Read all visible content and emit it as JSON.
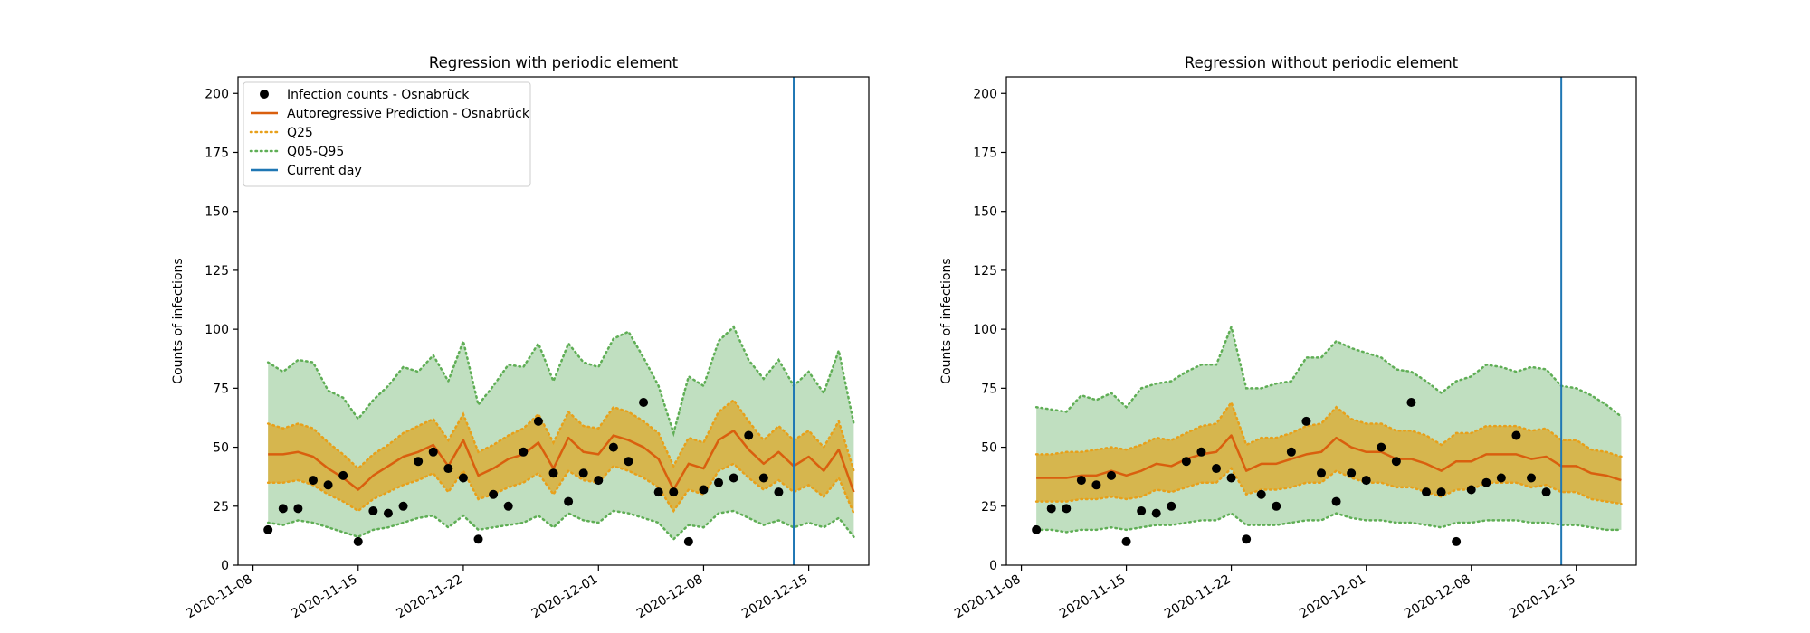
{
  "chart_data": [
    {
      "type": "line",
      "title": "Regression with periodic element",
      "xlabel": "",
      "ylabel": "Counts of infections",
      "ylim": [
        0,
        207
      ],
      "xlim": [
        "2020-11-07",
        "2020-12-19"
      ],
      "yticks": [
        0,
        25,
        50,
        75,
        100,
        125,
        150,
        175,
        200
      ],
      "xticks": [
        "2020-11-08",
        "2020-11-15",
        "2020-11-22",
        "2020-12-01",
        "2020-12-08",
        "2020-12-15"
      ],
      "grid": false,
      "legend_position": "upper-left",
      "legend": [
        {
          "label": "Infection counts - Osnabrück",
          "kind": "marker",
          "color": "#000000"
        },
        {
          "label": "Autoregressive Prediction - Osnabrück",
          "kind": "line",
          "color": "#d95f0e"
        },
        {
          "label": "Q25",
          "kind": "dotted",
          "color": "#e8a01a"
        },
        {
          "label": "Q05-Q95",
          "kind": "dotted",
          "color": "#5fae55"
        },
        {
          "label": "Current day",
          "kind": "line",
          "color": "#1f77b4"
        }
      ],
      "current_day": "2020-12-14",
      "observed": {
        "x": [
          "2020-11-09",
          "2020-11-10",
          "2020-11-11",
          "2020-11-12",
          "2020-11-13",
          "2020-11-14",
          "2020-11-15",
          "2020-11-16",
          "2020-11-17",
          "2020-11-18",
          "2020-11-19",
          "2020-11-20",
          "2020-11-21",
          "2020-11-22",
          "2020-11-23",
          "2020-11-24",
          "2020-11-25",
          "2020-11-26",
          "2020-11-27",
          "2020-11-28",
          "2020-11-29",
          "2020-11-30",
          "2020-12-01",
          "2020-12-02",
          "2020-12-03",
          "2020-12-04",
          "2020-12-05",
          "2020-12-06",
          "2020-12-07",
          "2020-12-08",
          "2020-12-09",
          "2020-12-10",
          "2020-12-11",
          "2020-12-12",
          "2020-12-13"
        ],
        "y": [
          15,
          24,
          24,
          36,
          34,
          38,
          10,
          23,
          22,
          25,
          44,
          48,
          41,
          37,
          11,
          30,
          25,
          48,
          61,
          39,
          27,
          39,
          36,
          50,
          44,
          69,
          31,
          31,
          10,
          32,
          35,
          37,
          55,
          37,
          31
        ]
      },
      "series": [
        {
          "name": "Autoregressive Prediction - Osnabrück",
          "x": [
            "2020-11-09",
            "2020-11-10",
            "2020-11-11",
            "2020-11-12",
            "2020-11-13",
            "2020-11-14",
            "2020-11-15",
            "2020-11-16",
            "2020-11-17",
            "2020-11-18",
            "2020-11-19",
            "2020-11-20",
            "2020-11-21",
            "2020-11-22",
            "2020-11-23",
            "2020-11-24",
            "2020-11-25",
            "2020-11-26",
            "2020-11-27",
            "2020-11-28",
            "2020-11-29",
            "2020-11-30",
            "2020-12-01",
            "2020-12-02",
            "2020-12-03",
            "2020-12-04",
            "2020-12-05",
            "2020-12-06",
            "2020-12-07",
            "2020-12-08",
            "2020-12-09",
            "2020-12-10",
            "2020-12-11",
            "2020-12-12",
            "2020-12-13",
            "2020-12-14",
            "2020-12-15",
            "2020-12-16",
            "2020-12-17",
            "2020-12-18"
          ],
          "y": [
            47,
            47,
            48,
            46,
            41,
            37,
            32,
            38,
            42,
            46,
            48,
            51,
            42,
            53,
            38,
            41,
            45,
            47,
            52,
            41,
            54,
            48,
            47,
            55,
            53,
            50,
            45,
            32,
            43,
            41,
            53,
            57,
            49,
            43,
            48,
            42,
            46,
            40,
            49,
            31
          ],
          "q25_upper": [
            60,
            58,
            60,
            58,
            52,
            47,
            41,
            47,
            51,
            56,
            59,
            62,
            53,
            64,
            48,
            51,
            55,
            58,
            64,
            52,
            65,
            59,
            58,
            67,
            65,
            61,
            56,
            42,
            54,
            52,
            65,
            70,
            61,
            53,
            59,
            53,
            57,
            50,
            61,
            40
          ],
          "q25_lower": [
            35,
            35,
            36,
            34,
            30,
            27,
            23,
            28,
            31,
            34,
            36,
            39,
            31,
            40,
            28,
            30,
            33,
            35,
            39,
            30,
            40,
            36,
            35,
            42,
            40,
            37,
            33,
            23,
            32,
            30,
            40,
            43,
            37,
            32,
            36,
            31,
            34,
            29,
            37,
            22
          ],
          "q05_upper": [
            86,
            82,
            87,
            86,
            74,
            71,
            62,
            70,
            76,
            84,
            82,
            89,
            78,
            95,
            68,
            76,
            85,
            84,
            94,
            78,
            94,
            86,
            84,
            96,
            99,
            88,
            76,
            56,
            80,
            76,
            95,
            101,
            87,
            79,
            87,
            76,
            82,
            73,
            91,
            60
          ],
          "q05_lower": [
            18,
            17,
            19,
            18,
            16,
            14,
            12,
            15,
            16,
            18,
            20,
            21,
            16,
            21,
            15,
            16,
            17,
            18,
            21,
            16,
            22,
            19,
            18,
            23,
            22,
            20,
            18,
            11,
            17,
            16,
            22,
            23,
            20,
            17,
            19,
            16,
            18,
            16,
            20,
            12
          ]
        }
      ]
    },
    {
      "type": "line",
      "title": "Regression without periodic element",
      "xlabel": "",
      "ylabel": "Counts of infections",
      "ylim": [
        0,
        207
      ],
      "xlim": [
        "2020-11-07",
        "2020-12-19"
      ],
      "yticks": [
        0,
        25,
        50,
        75,
        100,
        125,
        150,
        175,
        200
      ],
      "xticks": [
        "2020-11-08",
        "2020-11-15",
        "2020-11-22",
        "2020-12-01",
        "2020-12-08",
        "2020-12-15"
      ],
      "grid": false,
      "current_day": "2020-12-14",
      "observed": {
        "x": [
          "2020-11-09",
          "2020-11-10",
          "2020-11-11",
          "2020-11-12",
          "2020-11-13",
          "2020-11-14",
          "2020-11-15",
          "2020-11-16",
          "2020-11-17",
          "2020-11-18",
          "2020-11-19",
          "2020-11-20",
          "2020-11-21",
          "2020-11-22",
          "2020-11-23",
          "2020-11-24",
          "2020-11-25",
          "2020-11-26",
          "2020-11-27",
          "2020-11-28",
          "2020-11-29",
          "2020-11-30",
          "2020-12-01",
          "2020-12-02",
          "2020-12-03",
          "2020-12-04",
          "2020-12-05",
          "2020-12-06",
          "2020-12-07",
          "2020-12-08",
          "2020-12-09",
          "2020-12-10",
          "2020-12-11",
          "2020-12-12",
          "2020-12-13"
        ],
        "y": [
          15,
          24,
          24,
          36,
          34,
          38,
          10,
          23,
          22,
          25,
          44,
          48,
          41,
          37,
          11,
          30,
          25,
          48,
          61,
          39,
          27,
          39,
          36,
          50,
          44,
          69,
          31,
          31,
          10,
          32,
          35,
          37,
          55,
          37,
          31
        ]
      },
      "series": [
        {
          "name": "Autoregressive Prediction - Osnabrück",
          "x": [
            "2020-11-09",
            "2020-11-10",
            "2020-11-11",
            "2020-11-12",
            "2020-11-13",
            "2020-11-14",
            "2020-11-15",
            "2020-11-16",
            "2020-11-17",
            "2020-11-18",
            "2020-11-19",
            "2020-11-20",
            "2020-11-21",
            "2020-11-22",
            "2020-11-23",
            "2020-11-24",
            "2020-11-25",
            "2020-11-26",
            "2020-11-27",
            "2020-11-28",
            "2020-11-29",
            "2020-11-30",
            "2020-12-01",
            "2020-12-02",
            "2020-12-03",
            "2020-12-04",
            "2020-12-05",
            "2020-12-06",
            "2020-12-07",
            "2020-12-08",
            "2020-12-09",
            "2020-12-10",
            "2020-12-11",
            "2020-12-12",
            "2020-12-13",
            "2020-12-14",
            "2020-12-15",
            "2020-12-16",
            "2020-12-17",
            "2020-12-18"
          ],
          "y": [
            37,
            37,
            37,
            38,
            38,
            40,
            38,
            40,
            43,
            42,
            45,
            47,
            48,
            55,
            40,
            43,
            43,
            45,
            47,
            48,
            54,
            50,
            48,
            48,
            45,
            45,
            43,
            40,
            44,
            44,
            47,
            47,
            47,
            45,
            46,
            42,
            42,
            39,
            38,
            36
          ],
          "q25_upper": [
            47,
            47,
            48,
            48,
            49,
            50,
            49,
            51,
            54,
            53,
            56,
            59,
            60,
            69,
            51,
            54,
            54,
            56,
            59,
            60,
            67,
            62,
            60,
            60,
            57,
            57,
            55,
            51,
            56,
            56,
            59,
            59,
            59,
            57,
            58,
            53,
            53,
            49,
            48,
            46
          ],
          "q25_lower": [
            27,
            27,
            27,
            28,
            28,
            29,
            28,
            29,
            32,
            31,
            33,
            35,
            35,
            41,
            30,
            32,
            32,
            33,
            35,
            35,
            40,
            37,
            35,
            35,
            33,
            33,
            31,
            29,
            32,
            32,
            35,
            35,
            35,
            33,
            34,
            31,
            31,
            28,
            27,
            26
          ],
          "q05_upper": [
            67,
            66,
            65,
            72,
            70,
            73,
            67,
            75,
            77,
            78,
            82,
            85,
            85,
            101,
            75,
            75,
            77,
            78,
            88,
            88,
            95,
            92,
            90,
            88,
            83,
            82,
            78,
            73,
            78,
            80,
            85,
            84,
            82,
            84,
            83,
            76,
            75,
            72,
            68,
            63
          ],
          "q05_lower": [
            15,
            15,
            14,
            15,
            15,
            16,
            15,
            16,
            17,
            17,
            18,
            19,
            19,
            22,
            17,
            17,
            17,
            18,
            19,
            19,
            22,
            20,
            19,
            19,
            18,
            18,
            17,
            16,
            18,
            18,
            19,
            19,
            19,
            18,
            18,
            17,
            17,
            16,
            15,
            15
          ]
        }
      ]
    }
  ]
}
